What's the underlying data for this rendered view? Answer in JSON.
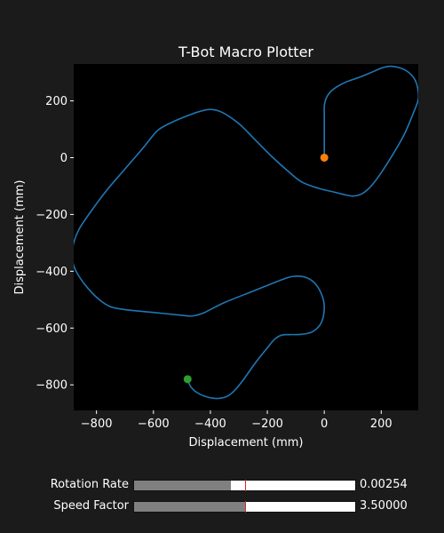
{
  "chart_data": {
    "type": "line",
    "title": "T-Bot Macro Plotter",
    "xlabel": "Displacement (mm)",
    "ylabel": "Displacement (mm)",
    "xlim": [
      -880,
      330
    ],
    "ylim": [
      -890,
      330
    ],
    "xticks": [
      -800,
      -600,
      -400,
      -200,
      0,
      200
    ],
    "yticks": [
      200,
      0,
      -200,
      -400,
      -600,
      -800
    ],
    "grid": false,
    "background": "#000000",
    "line_color": "#1f77b4",
    "path": [
      [
        0,
        0
      ],
      [
        0,
        50
      ],
      [
        0,
        100
      ],
      [
        0,
        150
      ],
      [
        0,
        180
      ],
      [
        5,
        205
      ],
      [
        20,
        230
      ],
      [
        45,
        250
      ],
      [
        80,
        268
      ],
      [
        120,
        282
      ],
      [
        160,
        298
      ],
      [
        200,
        315
      ],
      [
        230,
        322
      ],
      [
        260,
        318
      ],
      [
        290,
        305
      ],
      [
        315,
        280
      ],
      [
        328,
        245
      ],
      [
        330,
        205
      ],
      [
        310,
        150
      ],
      [
        280,
        80
      ],
      [
        240,
        10
      ],
      [
        195,
        -60
      ],
      [
        160,
        -105
      ],
      [
        130,
        -128
      ],
      [
        100,
        -135
      ],
      [
        70,
        -130
      ],
      [
        30,
        -120
      ],
      [
        -20,
        -108
      ],
      [
        -80,
        -85
      ],
      [
        -130,
        -45
      ],
      [
        -180,
        0
      ],
      [
        -240,
        60
      ],
      [
        -300,
        120
      ],
      [
        -360,
        160
      ],
      [
        -400,
        170
      ],
      [
        -440,
        162
      ],
      [
        -500,
        140
      ],
      [
        -545,
        120
      ],
      [
        -580,
        100
      ],
      [
        -600,
        80
      ],
      [
        -640,
        30
      ],
      [
        -700,
        -40
      ],
      [
        -760,
        -110
      ],
      [
        -820,
        -190
      ],
      [
        -860,
        -250
      ],
      [
        -880,
        -300
      ],
      [
        -885,
        -340
      ],
      [
        -880,
        -380
      ],
      [
        -860,
        -420
      ],
      [
        -830,
        -460
      ],
      [
        -790,
        -500
      ],
      [
        -750,
        -525
      ],
      [
        -700,
        -535
      ],
      [
        -600,
        -545
      ],
      [
        -500,
        -555
      ],
      [
        -470,
        -558
      ],
      [
        -450,
        -555
      ],
      [
        -420,
        -545
      ],
      [
        -350,
        -510
      ],
      [
        -250,
        -470
      ],
      [
        -150,
        -430
      ],
      [
        -110,
        -418
      ],
      [
        -70,
        -420
      ],
      [
        -35,
        -440
      ],
      [
        -10,
        -480
      ],
      [
        0,
        -525
      ],
      [
        -10,
        -580
      ],
      [
        -40,
        -612
      ],
      [
        -80,
        -622
      ],
      [
        -120,
        -623
      ],
      [
        -150,
        -625
      ],
      [
        -175,
        -640
      ],
      [
        -200,
        -670
      ],
      [
        -240,
        -720
      ],
      [
        -290,
        -790
      ],
      [
        -320,
        -825
      ],
      [
        -345,
        -842
      ],
      [
        -380,
        -848
      ],
      [
        -420,
        -840
      ],
      [
        -450,
        -825
      ],
      [
        -470,
        -805
      ],
      [
        -480,
        -780
      ]
    ],
    "start_marker": {
      "x": 0,
      "y": 0,
      "color": "#ff7f0e"
    },
    "end_marker": {
      "x": -480,
      "y": -780,
      "color": "#2ca02c"
    }
  },
  "sliders": [
    {
      "label": "Rotation Rate",
      "value_text": "0.00254",
      "fill_fraction": 0.437,
      "init_fraction": 0.5
    },
    {
      "label": "Speed Factor",
      "value_text": "3.50000",
      "fill_fraction": 0.5,
      "init_fraction": 0.5
    }
  ]
}
